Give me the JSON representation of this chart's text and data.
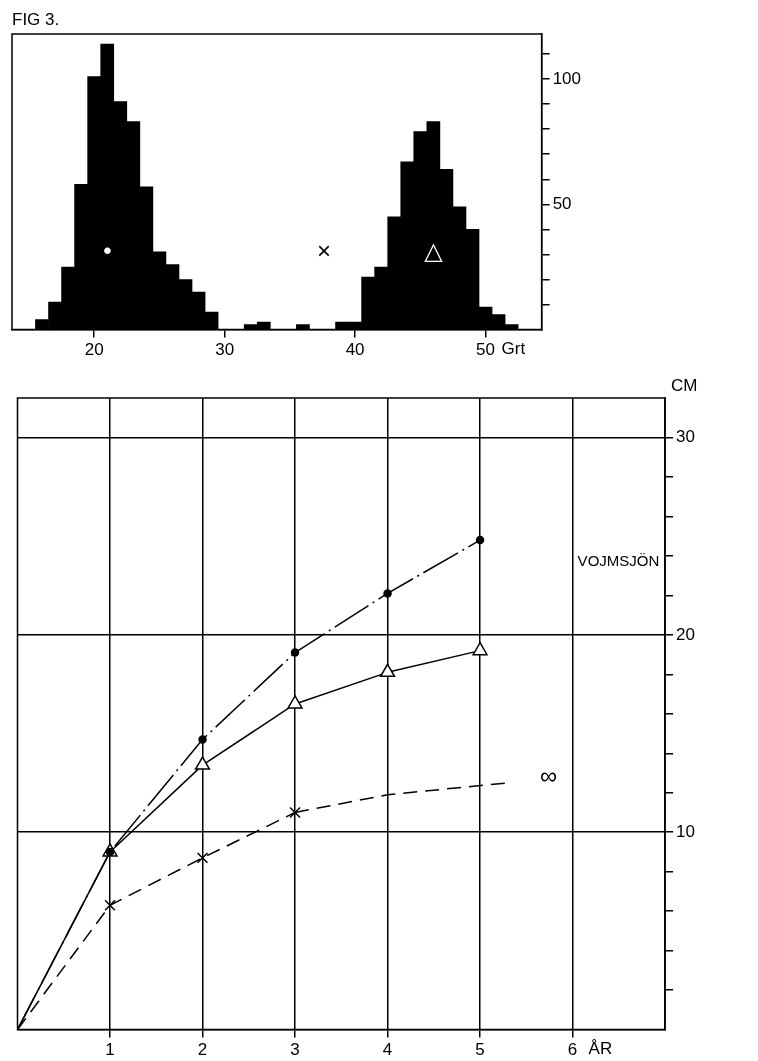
{
  "chart_data": [
    {
      "type": "histogram",
      "title": "FIG 3.",
      "xlabel": "Grt",
      "color": "#000000",
      "bins": [
        15.5,
        16.5,
        17.5,
        18.5,
        19.5,
        20.5,
        21.5,
        22.5,
        23.5,
        24.5,
        25.5,
        26.5,
        27.5,
        28.5,
        29.5,
        30.5,
        31.5,
        32.5,
        33.5,
        34.5,
        35.5,
        36.5,
        37.5,
        38.5,
        39.5,
        40.5,
        41.5,
        42.5,
        43.5,
        44.5,
        45.5,
        46.5,
        47.5,
        48.5,
        49.5,
        50.5,
        51.5,
        52.5
      ],
      "values": [
        4,
        11,
        25,
        58,
        101,
        114,
        91,
        83,
        57,
        31,
        26,
        20,
        15,
        7,
        0,
        0,
        2,
        3,
        0,
        0,
        2,
        0,
        0,
        3,
        3,
        21,
        25,
        45,
        67,
        79,
        83,
        64,
        49,
        40,
        9,
        6,
        2
      ],
      "xlim": [
        13.7,
        54.3
      ],
      "xticks": [
        20,
        30,
        40,
        50
      ],
      "ylim": [
        0,
        118
      ],
      "yticks": [
        {
          "value": 10,
          "label": null
        },
        {
          "value": 20,
          "label": null
        },
        {
          "value": 30,
          "label": null
        },
        {
          "value": 40,
          "label": null
        },
        50,
        {
          "value": 60,
          "label": null
        },
        {
          "value": 70,
          "label": null
        },
        {
          "value": 80,
          "label": null
        },
        {
          "value": 90,
          "label": null
        },
        100,
        {
          "value": 110,
          "label": null
        }
      ],
      "annotations": [
        "•",
        "×",
        "△"
      ]
    },
    {
      "type": "line",
      "title": "VOJMSJÖN",
      "xlabel": "ÅR",
      "ylabel": "CM",
      "x": [
        0,
        1,
        2,
        3,
        4,
        5
      ],
      "series": [
        {
          "color": "#000000",
          "marker": "circle",
          "line_style": "dashdot",
          "values": [
            0,
            9.0,
            14.7,
            19.1,
            22.1,
            24.8
          ]
        },
        {
          "color": "#000000",
          "marker": "triangle",
          "line_style": "solid",
          "values": [
            0,
            9.0,
            13.4,
            16.5,
            18.1,
            19.2
          ]
        },
        {
          "color": "#000000",
          "marker": "cross",
          "line_style": "dashed",
          "x": [
            0,
            1,
            2,
            3
          ],
          "values": [
            0,
            6.3,
            8.7,
            11.0
          ]
        },
        {
          "color": "#000000",
          "marker": "none",
          "line_style": "dashed",
          "x": [
            3,
            4,
            5.3
          ],
          "values": [
            11.0,
            11.9,
            12.5
          ]
        }
      ],
      "xlim": [
        0,
        7
      ],
      "xticks": [
        1,
        2,
        3,
        4,
        5,
        6
      ],
      "ylim": [
        0,
        32
      ],
      "yticks": [
        {
          "value": 2,
          "label": null
        },
        {
          "value": 4,
          "label": null
        },
        {
          "value": 6,
          "label": null
        },
        {
          "value": 8,
          "label": null
        },
        10,
        {
          "value": 12,
          "label": null
        },
        {
          "value": 14,
          "label": null
        },
        {
          "value": 16,
          "label": null
        },
        {
          "value": 18,
          "label": null
        },
        20,
        {
          "value": 22,
          "label": null
        },
        {
          "value": 24,
          "label": null
        },
        {
          "value": 26,
          "label": null
        },
        {
          "value": 28,
          "label": null
        },
        30
      ],
      "grid": true,
      "annotations": [
        "∞"
      ]
    }
  ]
}
